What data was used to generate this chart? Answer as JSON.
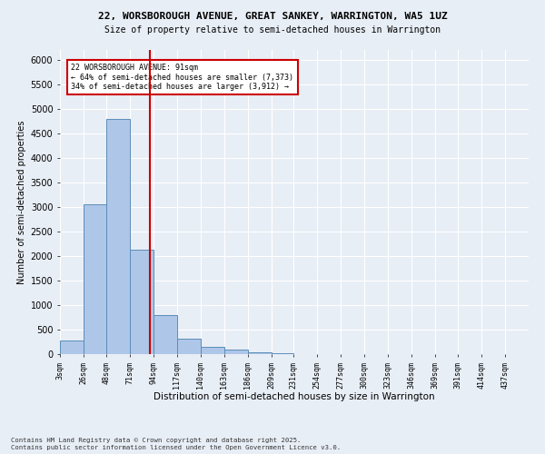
{
  "title_line1": "22, WORSBOROUGH AVENUE, GREAT SANKEY, WARRINGTON, WA5 1UZ",
  "title_line2": "Size of property relative to semi-detached houses in Warrington",
  "xlabel": "Distribution of semi-detached houses by size in Warrington",
  "ylabel": "Number of semi-detached properties",
  "footer_line1": "Contains HM Land Registry data © Crown copyright and database right 2025.",
  "footer_line2": "Contains public sector information licensed under the Open Government Licence v3.0.",
  "property_size": 91,
  "annotation_line1": "22 WORSBOROUGH AVENUE: 91sqm",
  "annotation_line2": "← 64% of semi-detached houses are smaller (7,373)",
  "annotation_line3": "34% of semi-detached houses are larger (3,912) →",
  "bar_edges": [
    3,
    26,
    48,
    71,
    94,
    117,
    140,
    163,
    186,
    209,
    231,
    254,
    277,
    300,
    323,
    346,
    369,
    391,
    414,
    437,
    460
  ],
  "bar_heights": [
    270,
    3060,
    4790,
    2130,
    790,
    310,
    145,
    85,
    30,
    15,
    8,
    5,
    3,
    2,
    1,
    1,
    0,
    0,
    0,
    0
  ],
  "bar_color": "#aec6e8",
  "bar_edge_color": "#5b8db8",
  "vline_color": "#cc0000",
  "vline_x": 91,
  "ylim": [
    0,
    6200
  ],
  "yticks": [
    0,
    500,
    1000,
    1500,
    2000,
    2500,
    3000,
    3500,
    4000,
    4500,
    5000,
    5500,
    6000
  ],
  "background_color": "#e8eef6",
  "grid_color": "#ffffff",
  "annotation_box_color": "#ffffff",
  "annotation_box_edge": "#cc0000"
}
